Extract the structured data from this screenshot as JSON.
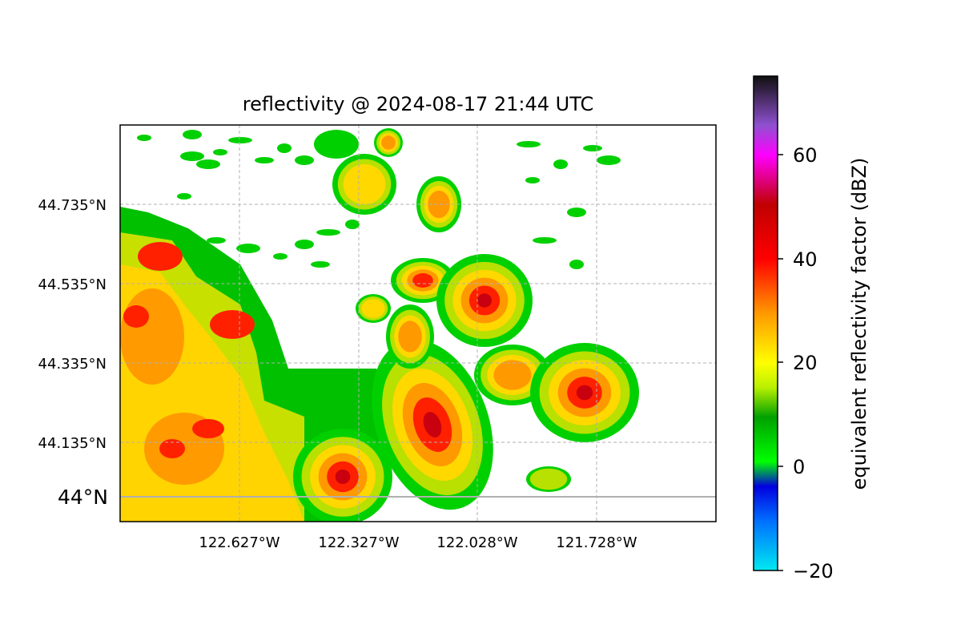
{
  "title": "reflectivity @ 2024-08-17 21:44 UTC",
  "map": {
    "lat_ticks": [
      "44.735°N",
      "44.535°N",
      "44.335°N",
      "44.135°N"
    ],
    "lat_reference_label": "44°N",
    "lon_ticks": [
      "122.627°W",
      "122.327°W",
      "122.028°W",
      "121.728°W"
    ],
    "gridlines": "dashed",
    "reference_parallel": "44°N"
  },
  "colorbar": {
    "label": "equivalent reflectivity factor (dBZ)",
    "range": [
      -20,
      75
    ],
    "tick_labels": [
      "−20",
      "0",
      "20",
      "40",
      "60"
    ],
    "colors": [
      "#00e5ee",
      "#0090ff",
      "#0000e0",
      "#00ff00",
      "#00a000",
      "#ffff00",
      "#ff9900",
      "#ff0000",
      "#c00000",
      "#ff00ff",
      "#9050d0",
      "#101010"
    ]
  }
}
